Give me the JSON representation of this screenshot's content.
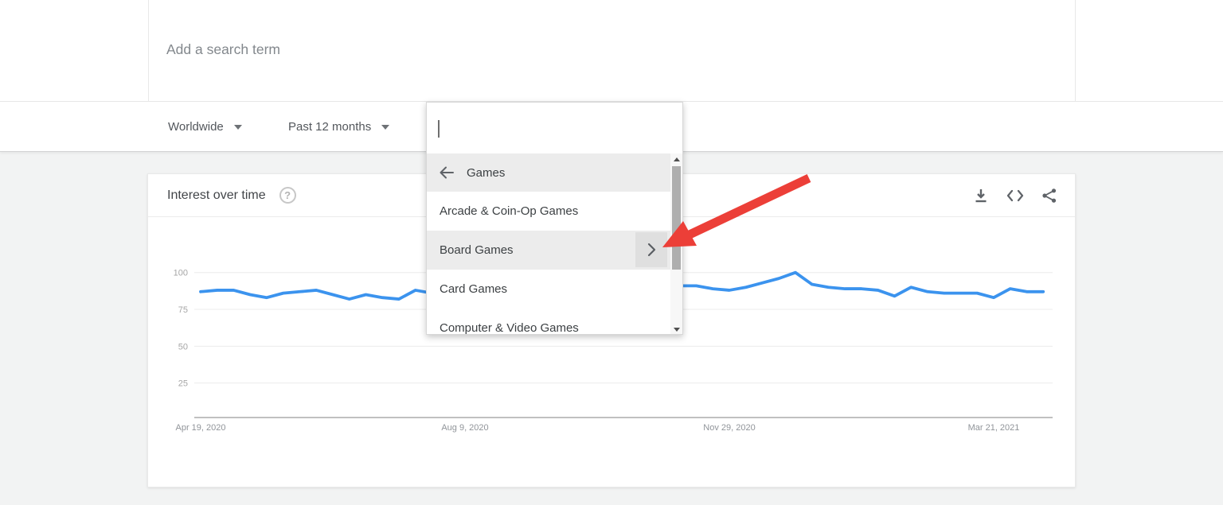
{
  "search_card": {
    "placeholder": "Add a search term"
  },
  "filter_bar": {
    "region": {
      "label": "Worldwide",
      "icon": "triangle-down"
    },
    "time_range": {
      "label": "Past 12 months",
      "icon": "triangle-down"
    }
  },
  "category_dropdown": {
    "input_value": "",
    "back_item": {
      "icon": "arrow-left",
      "label": "Games"
    },
    "items": [
      {
        "label": "Arcade & Coin-Op Games",
        "highlighted": false,
        "has_submenu": false
      },
      {
        "label": "Board Games",
        "highlighted": true,
        "has_submenu": true
      },
      {
        "label": "Card Games",
        "highlighted": false,
        "has_submenu": false
      },
      {
        "label": "Computer & Video Games",
        "highlighted": false,
        "has_submenu": false
      }
    ],
    "submenu_chevron_icon": "chevron-right",
    "scrollbar": {
      "up_icon": "triangle-up",
      "down_icon": "triangle-down"
    }
  },
  "chart_card": {
    "title": "Interest over time",
    "help_icon_glyph": "?",
    "actions": [
      {
        "icon": "download-icon"
      },
      {
        "icon": "embed-code-icon"
      },
      {
        "icon": "share-icon"
      }
    ]
  },
  "annotation_arrow": {
    "color": "#ec3f38"
  },
  "chart_data": {
    "type": "line",
    "title": "Interest over time",
    "x_unit": "week",
    "x_tick_labels": [
      "Apr 19, 2020",
      "Aug 9, 2020",
      "Nov 29, 2020",
      "Mar 21, 2021"
    ],
    "x_tick_indices": [
      0,
      16,
      32,
      48
    ],
    "y_ticks": [
      25,
      50,
      75,
      100
    ],
    "ylim": [
      0,
      100
    ],
    "grid": true,
    "line_color": "#3b93ee",
    "series": [
      {
        "name": "Interest over time",
        "values": [
          87,
          88,
          88,
          85,
          83,
          86,
          87,
          88,
          85,
          82,
          85,
          83,
          82,
          88,
          86,
          85,
          86,
          87,
          86,
          85,
          86,
          87,
          86,
          85,
          86,
          87,
          88,
          89,
          90,
          91,
          91,
          89,
          88,
          90,
          93,
          96,
          100,
          92,
          90,
          89,
          89,
          88,
          84,
          90,
          87,
          86,
          86,
          86,
          83,
          89,
          87,
          87
        ]
      }
    ]
  }
}
